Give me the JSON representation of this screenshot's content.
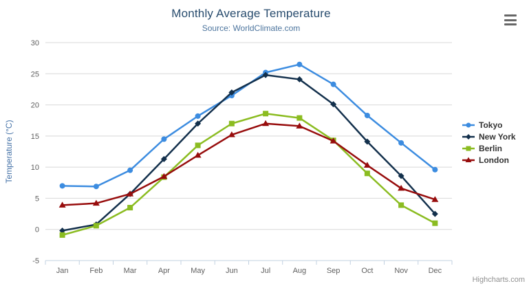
{
  "header": {
    "title": "Monthly Average Temperature",
    "subtitle": "Source: WorldClimate.com"
  },
  "credits": {
    "label": "Highcharts.com"
  },
  "export_menu": {
    "icon": "hamburger-icon"
  },
  "chart_data": {
    "type": "line",
    "title": "Monthly Average Temperature",
    "subtitle": "Source: WorldClimate.com",
    "categories": [
      "Jan",
      "Feb",
      "Mar",
      "Apr",
      "May",
      "Jun",
      "Jul",
      "Aug",
      "Sep",
      "Oct",
      "Nov",
      "Dec"
    ],
    "xlabel": "",
    "ylabel": "Temperature (°C)",
    "ylim": [
      -5,
      30
    ],
    "ytick_interval": 5,
    "grid": true,
    "legend_position": "right-middle",
    "series": [
      {
        "name": "Tokyo",
        "marker": "circle",
        "color": "#3c8ce0",
        "values": [
          7.0,
          6.9,
          9.5,
          14.5,
          18.2,
          21.5,
          25.2,
          26.5,
          23.3,
          18.3,
          13.9,
          9.6
        ]
      },
      {
        "name": "New York",
        "marker": "diamond",
        "color": "#13304c",
        "values": [
          -0.2,
          0.8,
          5.7,
          11.3,
          17.0,
          22.0,
          24.8,
          24.1,
          20.1,
          14.1,
          8.6,
          2.5
        ]
      },
      {
        "name": "Berlin",
        "marker": "square",
        "color": "#8bbc21",
        "values": [
          -0.9,
          0.6,
          3.5,
          8.4,
          13.5,
          17.0,
          18.6,
          17.9,
          14.3,
          9.0,
          3.9,
          1.0
        ]
      },
      {
        "name": "London",
        "marker": "triangle",
        "color": "#970c0c",
        "values": [
          3.9,
          4.2,
          5.7,
          8.5,
          11.9,
          15.2,
          17.0,
          16.6,
          14.2,
          10.3,
          6.6,
          4.8
        ]
      }
    ],
    "style": {
      "title_color": "#274b6d",
      "subtitle_color": "#4d759e",
      "grid_color": "#d8d8d8",
      "axis_line_color": "#c0d0e0",
      "tick_label_color": "#606060",
      "y_title_color": "#4572a7",
      "legend_text_color": "#333333",
      "credits_color": "#909090"
    }
  }
}
